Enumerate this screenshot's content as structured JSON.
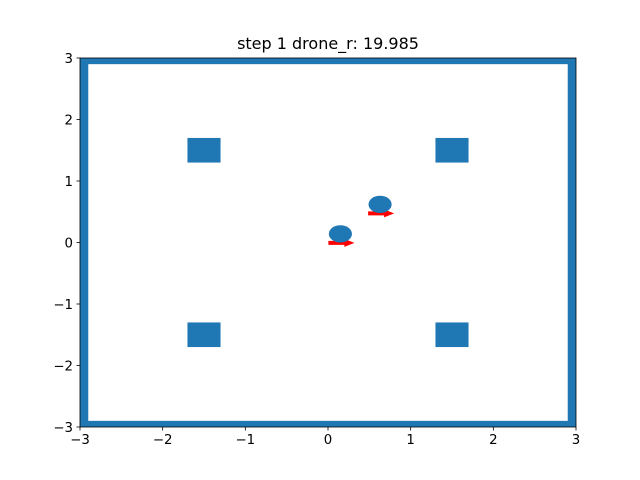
{
  "chart_data": {
    "type": "scatter",
    "title": "step 1 drone_r: 19.985",
    "xlabel": "",
    "ylabel": "",
    "xlim": [
      -3,
      3
    ],
    "ylim": [
      -3,
      3
    ],
    "grid": false,
    "xticks": [
      -3,
      -2,
      -1,
      0,
      1,
      2,
      3
    ],
    "yticks": [
      -3,
      -2,
      -1,
      0,
      1,
      2,
      3
    ],
    "xtick_labels": [
      "−3",
      "−2",
      "−1",
      "0",
      "1",
      "2",
      "3"
    ],
    "ytick_labels": [
      "−3",
      "−2",
      "−1",
      "0",
      "1",
      "2",
      "3"
    ],
    "colors": {
      "wall": "#1f77b4",
      "obstacle": "#1f77b4",
      "drone": "#1f77b4",
      "heading": "#ff0000"
    },
    "walls": {
      "x_min": -3,
      "x_max": 3,
      "y_min": -3,
      "y_max": 3,
      "thickness": 0.1
    },
    "obstacles": [
      {
        "x": -1.5,
        "y": 1.5,
        "w": 0.4,
        "h": 0.4
      },
      {
        "x": 1.5,
        "y": 1.5,
        "w": 0.4,
        "h": 0.4
      },
      {
        "x": -1.5,
        "y": -1.5,
        "w": 0.4,
        "h": 0.4
      },
      {
        "x": 1.5,
        "y": -1.5,
        "w": 0.4,
        "h": 0.4
      }
    ],
    "drones": [
      {
        "x": 0.15,
        "y": 0.14,
        "radius": 0.14,
        "heading_deg": 0
      },
      {
        "x": 0.63,
        "y": 0.62,
        "radius": 0.14,
        "heading_deg": 0
      }
    ]
  }
}
